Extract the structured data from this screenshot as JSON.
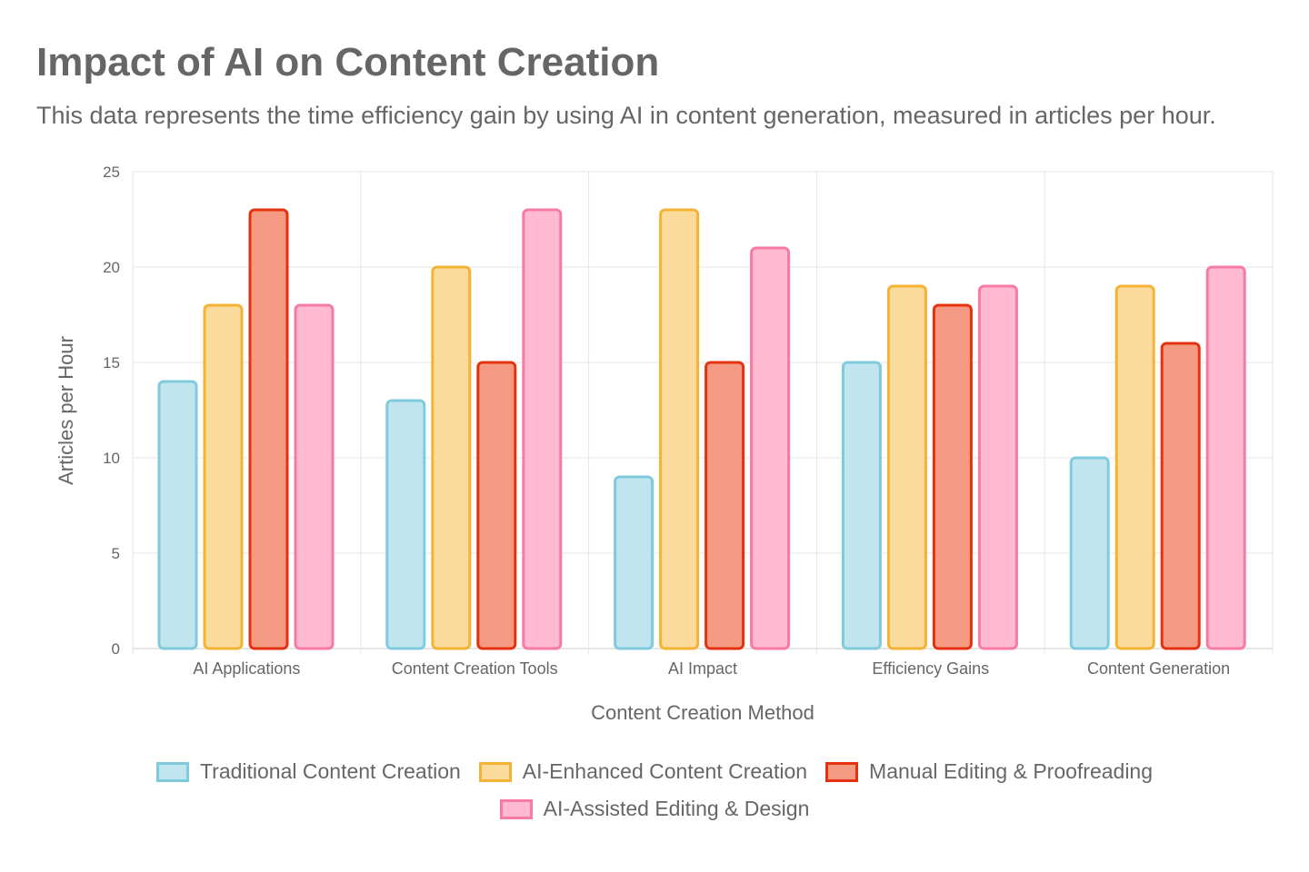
{
  "chart_data": {
    "type": "bar",
    "title": "Impact of AI on Content Creation",
    "subtitle": "This data represents the time efficiency gain by using AI in content generation, measured in articles per hour.",
    "xlabel": "Content Creation Method",
    "ylabel": "Articles per Hour",
    "ylim": [
      0,
      25
    ],
    "yticks": [
      0,
      5,
      10,
      15,
      20,
      25
    ],
    "grid": true,
    "legend": "bottom",
    "categories": [
      "AI Applications",
      "Content Creation Tools",
      "AI Impact",
      "Efficiency Gains",
      "Content Generation"
    ],
    "series": [
      {
        "name": "Traditional Content Creation",
        "values": [
          14,
          13,
          9,
          15,
          10
        ],
        "fill": "#c1e5ee",
        "border": "#7fcbdc"
      },
      {
        "name": "AI-Enhanced Content Creation",
        "values": [
          18,
          20,
          23,
          19,
          19
        ],
        "fill": "#fadb9c",
        "border": "#f5b335"
      },
      {
        "name": "Manual Editing & Proofreading",
        "values": [
          23,
          15,
          15,
          18,
          16
        ],
        "fill": "#f59a82",
        "border": "#e4310f"
      },
      {
        "name": "AI-Assisted Editing & Design",
        "values": [
          18,
          23,
          21,
          19,
          20
        ],
        "fill": "#ffbad2",
        "border": "#f77aa2"
      }
    ]
  }
}
